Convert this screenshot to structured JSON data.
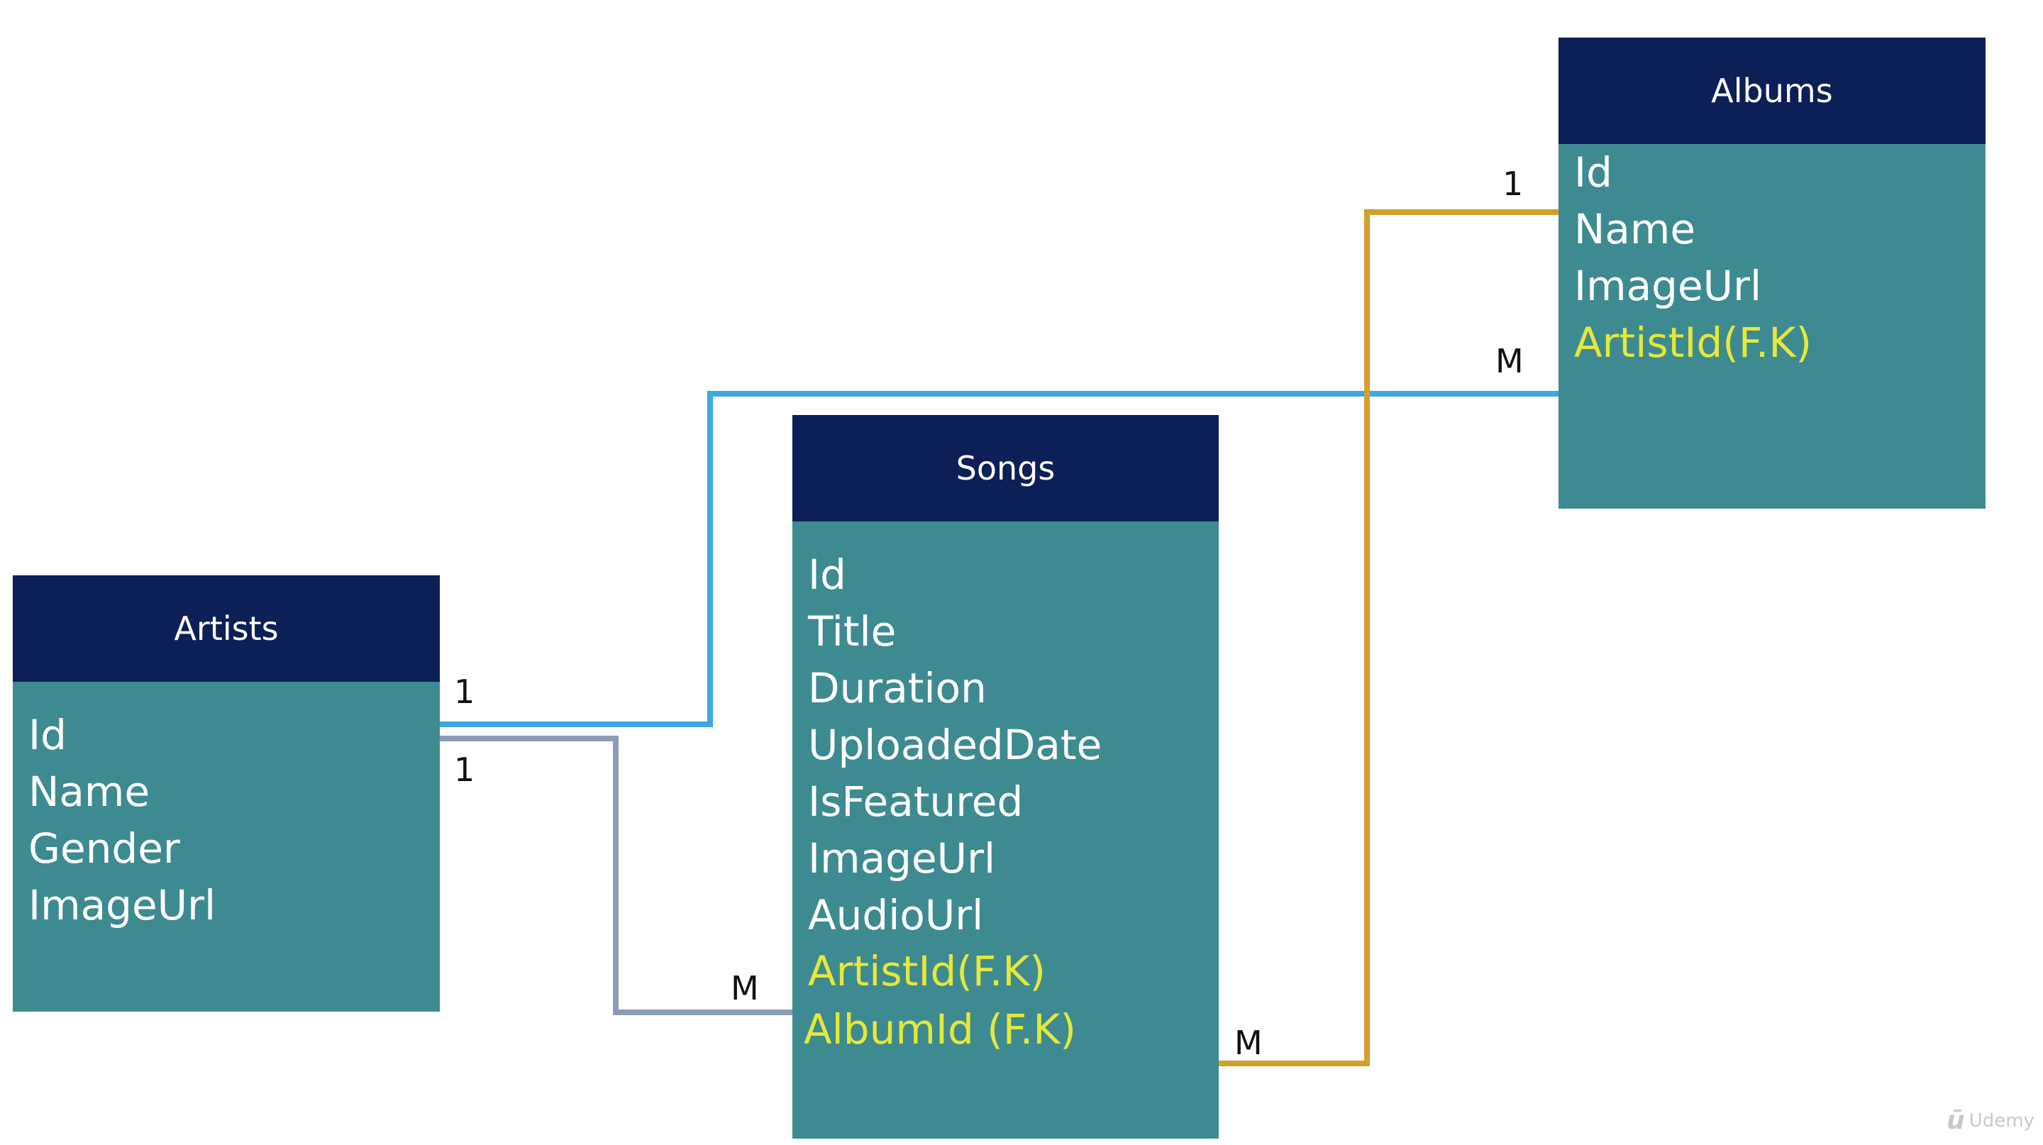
{
  "colors": {
    "header_bg": "#0d1f57",
    "body_bg": "#3d8b91",
    "field_text": "#ffffff",
    "fk_text": "#e6e83a",
    "line_artist_album": "#3ea6e3",
    "line_artist_song": "#8c9cb8",
    "line_album_song": "#d3a02b"
  },
  "entities": {
    "artists": {
      "title": "Artists",
      "fields": [
        "Id",
        "Name",
        "Gender",
        "ImageUrl"
      ]
    },
    "songs": {
      "title": "Songs",
      "fields": [
        "Id",
        "Title",
        "Duration",
        "UploadedDate",
        "IsFeatured",
        "ImageUrl",
        "AudioUrl"
      ],
      "fk_fields": [
        "ArtistId(F.K)",
        "AlbumId (F.K)"
      ]
    },
    "albums": {
      "title": "Albums",
      "fields": [
        "Id",
        "Name",
        "ImageUrl"
      ],
      "fk_fields": [
        "ArtistId(F.K)"
      ]
    }
  },
  "relations": {
    "artist_album": {
      "from_card": "1",
      "to_card": "M"
    },
    "artist_song": {
      "from_card": "1",
      "to_card": "M"
    },
    "album_song": {
      "from_card": "1",
      "to_card": "M"
    }
  },
  "watermark": {
    "text": "Udemy",
    "icon": "udemy-logo-icon"
  }
}
